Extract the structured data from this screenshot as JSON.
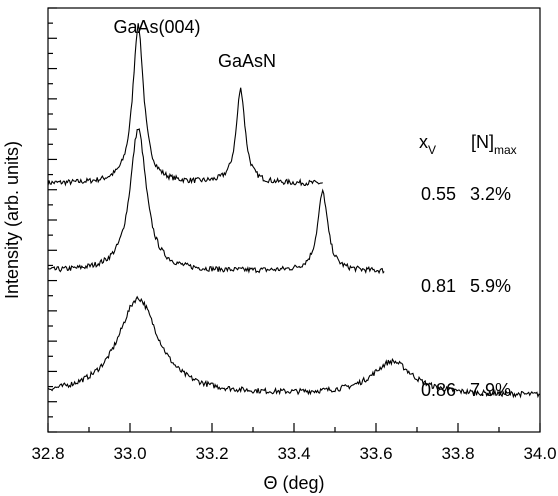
{
  "chart_data": {
    "type": "line",
    "xlabel": "Θ (deg)",
    "ylabel": "Intensity (arb. units)",
    "xlim": [
      32.8,
      34.0
    ],
    "x_ticks": [
      "32.8",
      "33.0",
      "33.2",
      "33.4",
      "33.6",
      "33.8",
      "34.0"
    ],
    "x_tick_values": [
      32.8,
      33.0,
      33.2,
      33.4,
      33.6,
      33.8,
      34.0
    ],
    "y_tick_labels_shown": false,
    "grid": false,
    "annotations": [
      {
        "text": "GaAs(004)",
        "x": 33.02,
        "near_series": 0
      },
      {
        "text": "GaAsN",
        "x": 33.28,
        "near_series": 0
      }
    ],
    "table_header": {
      "xv_main": "x",
      "xv_sub": "V",
      "n_main": "[N]",
      "n_sub": "max"
    },
    "table_rows": [
      {
        "xv": "0.55",
        "n": "3.2%"
      },
      {
        "xv": "0.81",
        "n": "5.9%"
      },
      {
        "xv": "0.86",
        "n": "7.9%"
      }
    ],
    "series": [
      {
        "x_range": [
          32.8,
          33.47
        ],
        "gaas_peak": 33.02,
        "gaasn_peak": 33.27,
        "baseline": 8.2,
        "gaas_height": 5.2,
        "gaas_width": 0.016,
        "gaasn_height": 3.1,
        "gaasn_width": 0.013
      },
      {
        "x_range": [
          32.8,
          33.62
        ],
        "gaas_peak": 33.02,
        "gaasn_peak": 33.47,
        "baseline": 5.3,
        "gaas_height": 4.7,
        "gaas_width": 0.024,
        "gaasn_height": 2.6,
        "gaasn_width": 0.015
      },
      {
        "x_range": [
          32.8,
          34.0
        ],
        "gaas_peak": 33.02,
        "gaasn_peak": 33.64,
        "baseline": 1.2,
        "gaas_height": 3.2,
        "gaas_width": 0.06,
        "gaasn_height": 1.1,
        "gaasn_width": 0.06
      }
    ]
  }
}
